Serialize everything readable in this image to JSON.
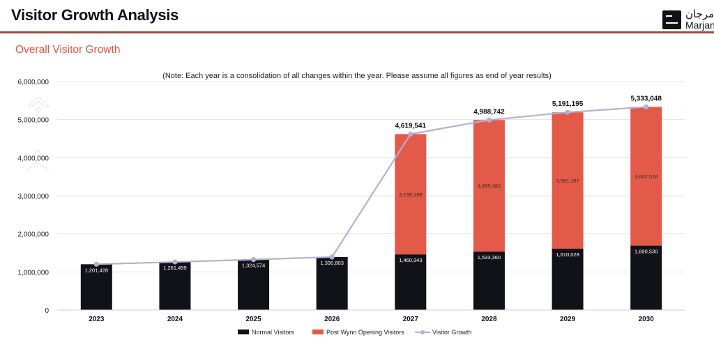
{
  "header": {
    "title": "Visitor Growth Analysis",
    "logo_arabic": "مرجان",
    "logo_english": "Marjan"
  },
  "section": {
    "title": "Overall Visitor Growth"
  },
  "colors": {
    "normal": "#111118",
    "post_wynn": "#e35a48",
    "growth_line": "#b4afd6",
    "accent": "#e5533f",
    "rule": "#9b4a3c"
  },
  "chart_data": {
    "type": "bar",
    "stacked": true,
    "note": "(Note: Each year is a consolidation of all changes within the year. Please assume all figures as end of year results)",
    "categories": [
      "2023",
      "2024",
      "2025",
      "2026",
      "2027",
      "2028",
      "2029",
      "2030"
    ],
    "series": [
      {
        "name": "Normal Visitors",
        "values": [
          1201428,
          1261499,
          1324574,
          1390803,
          1460343,
          1533360,
          1610028,
          1690530
        ],
        "labels": [
          "1,201,428",
          "1,261,499",
          "1,324,574",
          "1,390,803",
          "1,460,343",
          "1,533,360",
          "1,610,028",
          "1,690,530"
        ]
      },
      {
        "name": "Post Wynn Opening Visitors",
        "values": [
          0,
          0,
          0,
          0,
          3159198,
          3455382,
          3581167,
          3642518
        ],
        "labels": [
          "",
          "",
          "",
          "",
          "3,159,198",
          "3,455,382",
          "3,581,167",
          "3,642,518"
        ]
      }
    ],
    "line_series": {
      "name": "Visitor Growth",
      "values": [
        1201428,
        1261499,
        1324574,
        1390803,
        4619541,
        4988742,
        5191195,
        5333048
      ],
      "labels": [
        "",
        "",
        "",
        "",
        "4,619,541",
        "4,988,742",
        "5,191,195",
        "5,333,048"
      ]
    },
    "y_ticks": [
      "0",
      "1,000,000",
      "2,000,000",
      "3,000,000",
      "4,000,000",
      "5,000,000",
      "6,000,000"
    ],
    "ylim": [
      0,
      6000000
    ],
    "grid": true,
    "legend_position": "bottom-center"
  }
}
